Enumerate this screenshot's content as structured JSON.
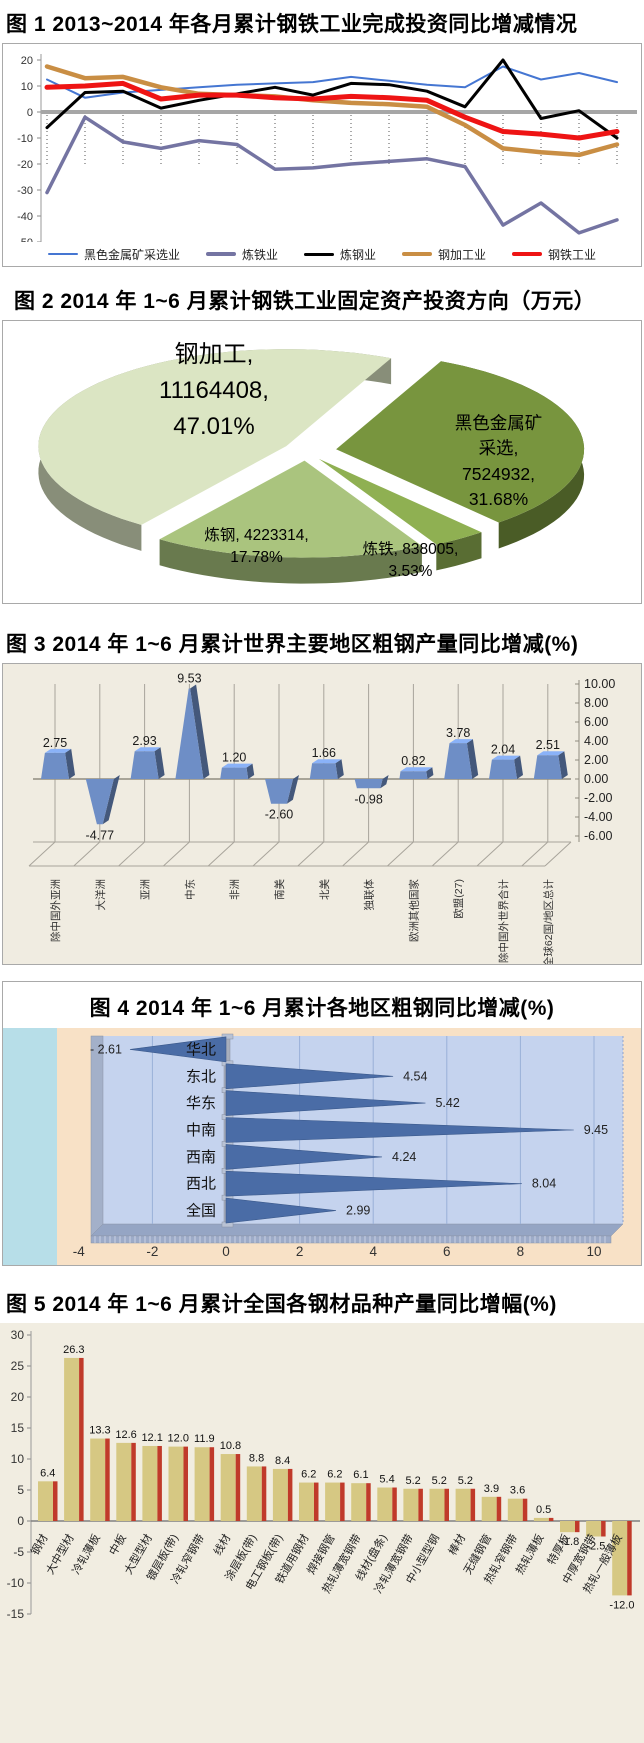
{
  "chart_data": [
    {
      "type": "line",
      "title": "图 1 2013~2014 年各月累计钢铁工业完成投资同比增减情况",
      "x_count": 16,
      "ylim": [
        -50,
        20
      ],
      "yticks": [
        20,
        10,
        0,
        -10,
        -20,
        -30,
        -40,
        -50
      ],
      "grid": "dotted-vertical",
      "legend_position": "bottom",
      "series": [
        {
          "name": "黑色金属矿采选业",
          "color": "#4576d2",
          "width": 2,
          "values": [
            12.5,
            5.5,
            7.5,
            8.5,
            9.5,
            10.5,
            11,
            11.5,
            13.5,
            12,
            10.5,
            9.5,
            17.5,
            12.5,
            15,
            11.5
          ]
        },
        {
          "name": "炼铁业",
          "color": "#7474a2",
          "width": 3.5,
          "values": [
            -31,
            -2,
            -11.5,
            -14,
            -11,
            -12.5,
            -22,
            -21.5,
            -20,
            -19,
            -18,
            -21,
            -43.5,
            -35,
            -46.5,
            -41.5
          ]
        },
        {
          "name": "炼钢业",
          "color": "#000000",
          "width": 3,
          "values": [
            -6,
            7.5,
            8,
            1.5,
            4.5,
            7,
            9.5,
            6.5,
            11,
            10.5,
            8,
            2,
            20,
            -2.5,
            0.5,
            -10
          ]
        },
        {
          "name": "钢加工业",
          "color": "#c98e44",
          "width": 4.5,
          "values": [
            17.5,
            13,
            13.5,
            9.5,
            7,
            6.5,
            6,
            4.5,
            3.5,
            3,
            2,
            -5,
            -14,
            -15.5,
            -16.5,
            -12.5
          ]
        },
        {
          "name": "钢铁工业",
          "color": "#ee1414",
          "width": 5,
          "values": [
            9.5,
            10,
            11,
            5,
            6.5,
            6.5,
            5.5,
            5,
            6,
            5.5,
            4.5,
            -2,
            -7.5,
            -8.5,
            -10,
            -7.5
          ]
        }
      ]
    },
    {
      "type": "pie",
      "title": "图 2 2014 年 1~6 月累计钢铁工业固定资产投资方向（万元）",
      "unit": "万元",
      "start_angle": -65,
      "slices": [
        {
          "name": "黑色金属矿采选",
          "value": 7524932,
          "pct": "31.68%",
          "pct_value": 31.68,
          "color": "#78953e",
          "explode": 16,
          "label": "黑色金属矿\n采选,\n7524932,\n31.68%"
        },
        {
          "name": "炼铁",
          "value": 838005,
          "pct": "3.53%",
          "pct_value": 3.53,
          "color": "#8fb052",
          "explode": 12,
          "label": "炼铁, 838005,\n3.53%"
        },
        {
          "name": "炼钢",
          "value": 4223314,
          "pct": "17.78%",
          "pct_value": 17.78,
          "color": "#aac47e",
          "explode": 12,
          "label": "炼钢, 4223314,\n17.78%"
        },
        {
          "name": "钢加工",
          "value": 11164408,
          "pct": "47.01%",
          "pct_value": 47.01,
          "color": "#dbe5c3",
          "explode": 12,
          "label": "钢加工,\n11164408,\n47.01%"
        }
      ]
    },
    {
      "type": "bar",
      "title": "图 3 2014 年 1~6 月累计世界主要地区粗钢产量同比增减(%)",
      "categories": [
        "除中国外亚洲",
        "大洋洲",
        "亚洲",
        "中东",
        "非洲",
        "南美",
        "北美",
        "独联体",
        "欧洲其他国家",
        "欧盟(27)",
        "除中国外世界合计",
        "全球62国/地区总计"
      ],
      "values": [
        2.75,
        -4.77,
        2.93,
        9.53,
        1.2,
        -2.6,
        1.66,
        -0.98,
        0.82,
        3.78,
        2.04,
        2.51
      ],
      "ylim": [
        -6,
        10
      ],
      "yticks": [
        "10.00",
        "8.00",
        "6.00",
        "4.00",
        "2.00",
        "0.00",
        "-2.00",
        "-4.00",
        "-6.00"
      ],
      "ytick_values": [
        10,
        8,
        6,
        4,
        2,
        0,
        -2,
        -4,
        -6
      ],
      "axis_side": "right",
      "bar_color": "#6e8ec6",
      "bg": "#f0ece1"
    },
    {
      "type": "bar",
      "orientation": "horizontal-cone",
      "title": "图 4 2014 年 1~6 月累计各地区粗钢同比增减(%)",
      "categories": [
        "华北",
        "东北",
        "华东",
        "中南",
        "西南",
        "西北",
        "全国"
      ],
      "values": [
        -2.61,
        4.54,
        5.42,
        9.45,
        4.24,
        8.04,
        2.99
      ],
      "xlim": [
        -4,
        10
      ],
      "xticks": [
        -4,
        -2,
        0,
        2,
        4,
        6,
        8,
        10
      ],
      "cone_color": "#4a6ca6",
      "plot_bg": "#c5d3ee",
      "outer_bg": "#f8e1c6",
      "left_strip": "#b7dee8"
    },
    {
      "type": "bar",
      "title": "图 5 2014 年 1~6 月累计全国各钢材品种产量同比增幅(%)",
      "categories": [
        "钢材",
        "大中型材",
        "冷轧薄板",
        "中板",
        "大型型材",
        "镀层板(带)",
        "冷轧窄钢带",
        "线材",
        "涂层板(带)",
        "电工钢板(带)",
        "铁道用钢材",
        "焊接钢管",
        "热轧薄宽钢带",
        "线材(盘条)",
        "冷轧薄宽钢带",
        "中小型型钢",
        "棒材",
        "无缝钢管",
        "热轧窄钢带",
        "热轧薄板",
        "特厚板",
        "中厚宽钢带",
        "热轧一般薄板"
      ],
      "values": [
        6.4,
        26.3,
        13.3,
        12.6,
        12.1,
        12.0,
        11.9,
        10.8,
        8.8,
        8.4,
        6.2,
        6.2,
        6.1,
        5.4,
        5.2,
        5.2,
        5.2,
        3.9,
        3.6,
        0.5,
        -1.8,
        -2.5,
        -12.0
      ],
      "ylim": [
        -15,
        30
      ],
      "yticks": [
        30,
        25,
        20,
        15,
        10,
        5,
        0,
        -5,
        -10,
        -15
      ],
      "bar_color": "#d6c883",
      "bar_side_color": "#c03a2a",
      "bg": "#f1ede1"
    }
  ]
}
